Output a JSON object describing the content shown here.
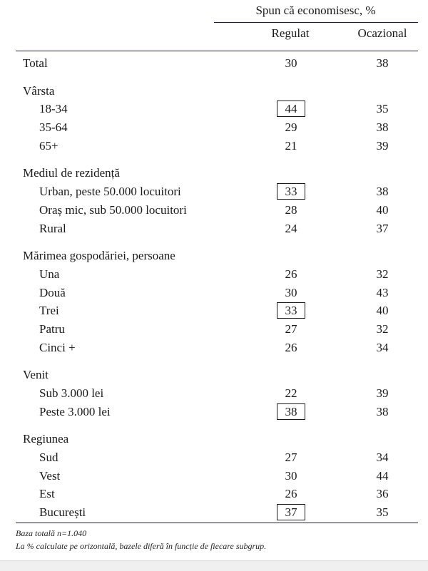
{
  "chart_data": {
    "type": "table",
    "header_super": "Spun că economisesc, %",
    "columns": [
      "Regulat",
      "Ocazional"
    ],
    "rows": [
      {
        "kind": "total",
        "label": "Total",
        "values": [
          30,
          38
        ]
      },
      {
        "kind": "group",
        "label": "Vârsta"
      },
      {
        "kind": "item",
        "label": "18-34",
        "values": [
          44,
          35
        ],
        "boxed": true
      },
      {
        "kind": "item",
        "label": "35-64",
        "values": [
          29,
          38
        ]
      },
      {
        "kind": "item",
        "label": "65+",
        "values": [
          21,
          39
        ]
      },
      {
        "kind": "group",
        "label": "Mediul de rezidență"
      },
      {
        "kind": "item",
        "label": "Urban, peste 50.000 locuitori",
        "values": [
          33,
          38
        ],
        "boxed": true
      },
      {
        "kind": "item",
        "label": "Oraș mic, sub 50.000 locuitori",
        "values": [
          28,
          40
        ]
      },
      {
        "kind": "item",
        "label": "Rural",
        "values": [
          24,
          37
        ]
      },
      {
        "kind": "group",
        "label": "Mărimea gospodăriei, persoane"
      },
      {
        "kind": "item",
        "label": "Una",
        "values": [
          26,
          32
        ]
      },
      {
        "kind": "item",
        "label": "Două",
        "values": [
          30,
          43
        ]
      },
      {
        "kind": "item",
        "label": "Trei",
        "values": [
          33,
          40
        ],
        "boxed": true
      },
      {
        "kind": "item",
        "label": "Patru",
        "values": [
          27,
          32
        ]
      },
      {
        "kind": "item",
        "label": "Cinci +",
        "values": [
          26,
          34
        ]
      },
      {
        "kind": "group",
        "label": "Venit"
      },
      {
        "kind": "item",
        "label": "Sub 3.000 lei",
        "values": [
          22,
          39
        ]
      },
      {
        "kind": "item",
        "label": "Peste 3.000 lei",
        "values": [
          38,
          38
        ],
        "boxed": true
      },
      {
        "kind": "group",
        "label": "Regiunea"
      },
      {
        "kind": "item",
        "label": "Sud",
        "values": [
          27,
          34
        ]
      },
      {
        "kind": "item",
        "label": "Vest",
        "values": [
          30,
          44
        ]
      },
      {
        "kind": "item",
        "label": "Est",
        "values": [
          26,
          36
        ]
      },
      {
        "kind": "item",
        "label": "București",
        "values": [
          37,
          35
        ],
        "boxed": true
      }
    ],
    "notes": [
      "Baza totală n=1.040",
      "La % calculate pe orizontală, bazele diferă în funcție de fiecare subgrup."
    ]
  }
}
